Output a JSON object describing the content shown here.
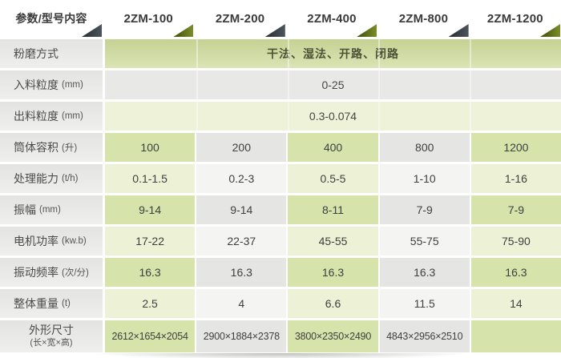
{
  "table": {
    "header": {
      "param_label": "参数/型号内容",
      "models": [
        "2ZM-100",
        "2ZM-200",
        "2ZM-400",
        "2ZM-800",
        "2ZM-1200"
      ]
    },
    "rows": [
      {
        "label": "粉磨方式",
        "unit": "",
        "span_value": "干法、湿法、开路、闭路",
        "tone": "green-grad"
      },
      {
        "label": "入料粒度",
        "unit": "(mm)",
        "span_value": "0-25",
        "tone": "gray-span"
      },
      {
        "label": "出料粒度",
        "unit": "(mm)",
        "span_value": "0.3-0.074",
        "tone": "lightgreen-span"
      },
      {
        "label": "筒体容积",
        "unit": "(升)",
        "values": [
          "100",
          "200",
          "400",
          "800",
          "1200"
        ],
        "tone": "dark"
      },
      {
        "label": "处理能力",
        "unit": "(t/h)",
        "values": [
          "0.1-1.5",
          "0.2-3",
          "0.5-5",
          "1-10",
          "1-16"
        ],
        "tone": "light"
      },
      {
        "label": "振幅",
        "unit": "(mm)",
        "values": [
          "9-14",
          "9-14",
          "8-11",
          "7-9",
          "7-9"
        ],
        "tone": "dark"
      },
      {
        "label": "电机功率",
        "unit": "(kw.b)",
        "values": [
          "17-22",
          "22-37",
          "45-55",
          "55-75",
          "75-90"
        ],
        "tone": "light"
      },
      {
        "label": "振动频率",
        "unit": "(次/分)",
        "values": [
          "16.3",
          "16.3",
          "16.3",
          "16.3",
          "16.3"
        ],
        "tone": "dark"
      },
      {
        "label": "整体重量",
        "unit": "(t)",
        "values": [
          "2.5",
          "4",
          "6.6",
          "11.5",
          "14"
        ],
        "tone": "light"
      },
      {
        "label": "外形尺寸",
        "sublabel": "(长×宽×高)",
        "values": [
          "2612×1654×2054",
          "2900×1884×2378",
          "3800×2350×2490",
          "4843×2956×2510",
          ""
        ],
        "tone": "dark",
        "small_text": true,
        "tall": true
      }
    ]
  },
  "colors": {
    "green_dark_cell": "#d6e3ab",
    "green_light_cell": "#edf2d7",
    "gray_dark_cell": "#e5e5e3",
    "gray_light_cell": "#f4f4f2",
    "row1_gradient_top": "#c6d193",
    "row1_gradient_bottom": "#dae4b5",
    "triangle_dark": "#3c434a",
    "triangle_olive": "#5f6e15",
    "header_text": "#3a3a3a",
    "body_text": "#3f3f3f"
  }
}
